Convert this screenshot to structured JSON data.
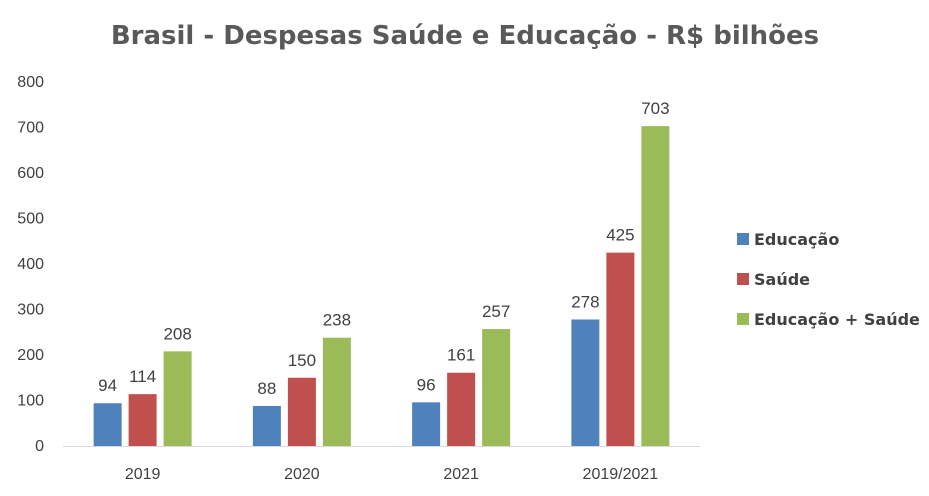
{
  "chart_data": {
    "type": "bar",
    "title": "Brasil - Despesas Saúde e Educação - R$ bilhões",
    "xlabel": "",
    "ylabel": "",
    "categories": [
      "2019",
      "2020",
      "2021",
      "2019/2021"
    ],
    "series": [
      {
        "name": "Educação",
        "color": "#4F81BD",
        "values": [
          94,
          88,
          96,
          278
        ]
      },
      {
        "name": "Saúde",
        "color": "#C0504D",
        "values": [
          114,
          150,
          161,
          425
        ]
      },
      {
        "name": "Educação + Saúde",
        "color": "#9BBB59",
        "values": [
          208,
          238,
          257,
          703
        ]
      }
    ],
    "ylim": [
      0,
      800
    ],
    "yticks": [
      "0",
      "100",
      "200",
      "300",
      "400",
      "500",
      "600",
      "700",
      "800"
    ],
    "grid": false,
    "legend_position": "right",
    "data_labels": true
  }
}
